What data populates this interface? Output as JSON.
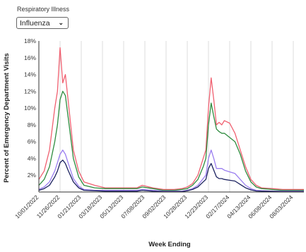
{
  "filter": {
    "label": "Respiratory Illness",
    "selected": "Influenza"
  },
  "chart_data": {
    "type": "line",
    "xlabel": "Week Ending",
    "ylabel": "Percent of Emergency Department Visits",
    "ylim": [
      0,
      18
    ],
    "y_ticks": [
      "2%",
      "4%",
      "6%",
      "8%",
      "10%",
      "12%",
      "14%",
      "16%",
      "18%"
    ],
    "x_ticks": [
      "10/01/2022",
      "11/26/2022",
      "01/21/2023",
      "03/18/2023",
      "05/13/2023",
      "07/08/2023",
      "09/02/2023",
      "10/28/2023",
      "12/23/2023",
      "02/17/2024",
      "04/13/2024",
      "06/08/2024",
      "08/03/2024"
    ],
    "grid": "vertical",
    "x_dates": [
      "2022-10-01",
      "2022-10-15",
      "2022-10-29",
      "2022-11-12",
      "2022-11-19",
      "2022-11-26",
      "2022-12-03",
      "2022-12-10",
      "2022-12-17",
      "2022-12-31",
      "2023-01-14",
      "2023-01-28",
      "2023-02-25",
      "2023-03-25",
      "2023-04-22",
      "2023-05-20",
      "2023-06-17",
      "2023-07-01",
      "2023-07-29",
      "2023-08-26",
      "2023-09-23",
      "2023-10-14",
      "2023-10-28",
      "2023-11-11",
      "2023-11-25",
      "2023-12-09",
      "2023-12-16",
      "2023-12-23",
      "2023-12-30",
      "2024-01-06",
      "2024-01-13",
      "2024-01-20",
      "2024-01-27",
      "2024-02-03",
      "2024-02-17",
      "2024-03-02",
      "2024-03-16",
      "2024-03-30",
      "2024-04-13",
      "2024-04-27",
      "2024-05-11",
      "2024-06-08",
      "2024-07-06",
      "2024-08-03",
      "2024-08-31"
    ],
    "series": [
      {
        "color": "#f06070",
        "values": [
          1.5,
          2.5,
          5,
          10,
          12,
          17.2,
          13,
          14,
          11,
          5,
          2.5,
          1.2,
          0.8,
          0.5,
          0.5,
          0.5,
          0.5,
          0.8,
          0.5,
          0.3,
          0.3,
          0.4,
          0.6,
          1,
          2,
          4,
          5,
          10,
          13.6,
          11,
          8,
          8.3,
          8,
          8.5,
          8.2,
          7,
          5,
          3,
          1.5,
          0.8,
          0.5,
          0.4,
          0.3,
          0.3,
          0.3
        ]
      },
      {
        "color": "#2e8b3e",
        "values": [
          0.8,
          1.5,
          3,
          6,
          8,
          11,
          12,
          11.5,
          9,
          4,
          1.8,
          0.8,
          0.5,
          0.4,
          0.4,
          0.4,
          0.4,
          0.6,
          0.4,
          0.2,
          0.2,
          0.3,
          0.4,
          0.8,
          1.5,
          3,
          4,
          8,
          10.6,
          9,
          7.5,
          7.2,
          7,
          7,
          6.5,
          6,
          4.5,
          2.5,
          1.2,
          0.6,
          0.4,
          0.3,
          0.2,
          0.2,
          0.2
        ]
      },
      {
        "color": "#9a7ef0",
        "values": [
          0.3,
          0.6,
          1.2,
          2.5,
          3.5,
          4.5,
          5,
          4.5,
          3.5,
          1.6,
          0.7,
          0.3,
          0.2,
          0.2,
          0.2,
          0.2,
          0.2,
          0.3,
          0.2,
          0.1,
          0.1,
          0.1,
          0.2,
          0.4,
          0.8,
          1.6,
          2,
          4,
          5,
          4,
          2.8,
          2.8,
          2.8,
          2.6,
          2.4,
          2.2,
          1.5,
          0.8,
          0.4,
          0.2,
          0.15,
          0.1,
          0.1,
          0.1,
          0.1
        ]
      },
      {
        "color": "#1c2260",
        "values": [
          0.2,
          0.4,
          0.8,
          1.8,
          2.5,
          3.5,
          3.8,
          3.4,
          2.6,
          1.2,
          0.5,
          0.2,
          0.15,
          0.1,
          0.1,
          0.1,
          0.1,
          0.2,
          0.1,
          0.05,
          0.05,
          0.05,
          0.15,
          0.3,
          0.6,
          1.2,
          1.5,
          2.8,
          3.4,
          2.6,
          1.8,
          1.6,
          1.6,
          1.5,
          1.4,
          1.3,
          0.9,
          0.5,
          0.25,
          0.12,
          0.1,
          0.08,
          0.05,
          0.05,
          0.05
        ]
      }
    ]
  }
}
